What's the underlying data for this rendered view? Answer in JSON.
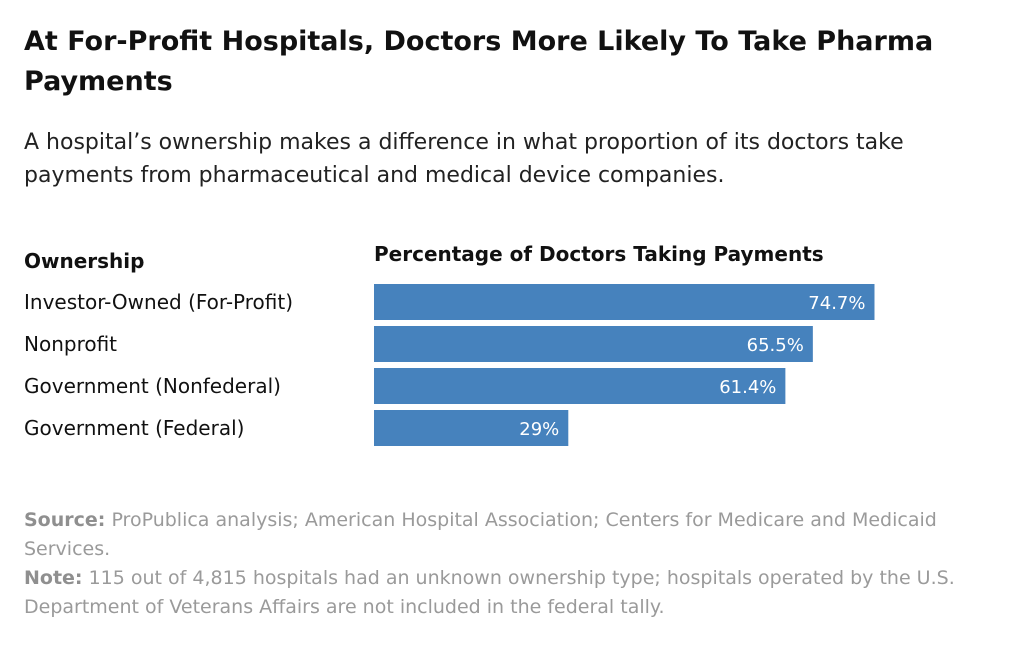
{
  "header": {
    "title": "At For-Profit Hospitals, Doctors More Likely To Take Pharma Payments",
    "subtitle": "A hospital’s ownership makes a difference in what proportion of its doctors take payments from pharmaceutical and medical device companies."
  },
  "footer": {
    "source_label": "Source:",
    "source_text": "ProPublica analysis; American Hospital Association; Centers for Medicare and Medicaid Services.",
    "note_label": "Note:",
    "note_text": "115 out of 4,815 hospitals had an unknown ownership type; hospitals operated by the U.S. Department of Veterans Affairs are not included in the federal tally."
  },
  "chart_data": {
    "type": "bar",
    "orientation": "horizontal",
    "category_header": "Ownership",
    "value_header": "Percentage of Doctors Taking Payments",
    "categories": [
      "Investor-Owned (For-Profit)",
      "Nonprofit",
      "Government (Nonfederal)",
      "Government (Federal)"
    ],
    "values": [
      74.7,
      65.5,
      61.4,
      29
    ],
    "value_labels": [
      "74.7%",
      "65.5%",
      "61.4%",
      "29%"
    ],
    "unit": "%",
    "xlim": [
      0,
      100
    ],
    "bar_color": "#4682bd",
    "grid": false,
    "legend": "none"
  }
}
